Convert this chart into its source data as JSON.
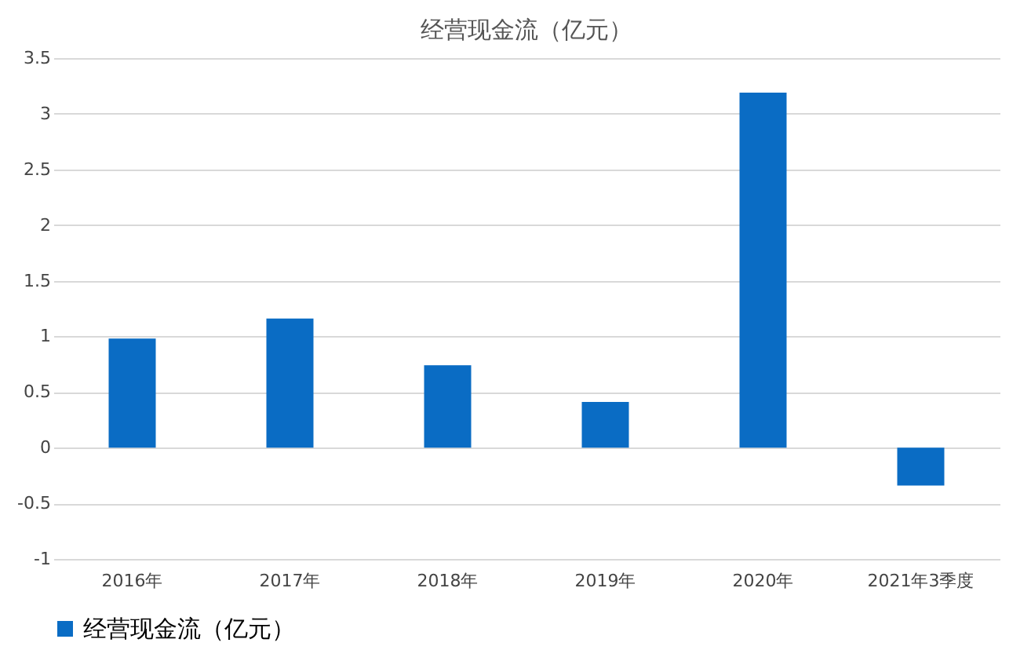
{
  "chart_data": {
    "type": "bar",
    "title": "经营现金流（亿元）",
    "categories": [
      "2016年",
      "2017年",
      "2018年",
      "2019年",
      "2020年",
      "2021年3季度"
    ],
    "series": [
      {
        "name": "经营现金流（亿元）",
        "color": "#0a6cc4",
        "values": [
          0.98,
          1.16,
          0.74,
          0.41,
          3.19,
          -0.34
        ]
      }
    ],
    "ylim": [
      -1,
      3.5
    ],
    "yticks": [
      -1,
      -0.5,
      0,
      0.5,
      1,
      1.5,
      2,
      2.5,
      3,
      3.5
    ],
    "grid": "y",
    "legend": "bottom"
  }
}
